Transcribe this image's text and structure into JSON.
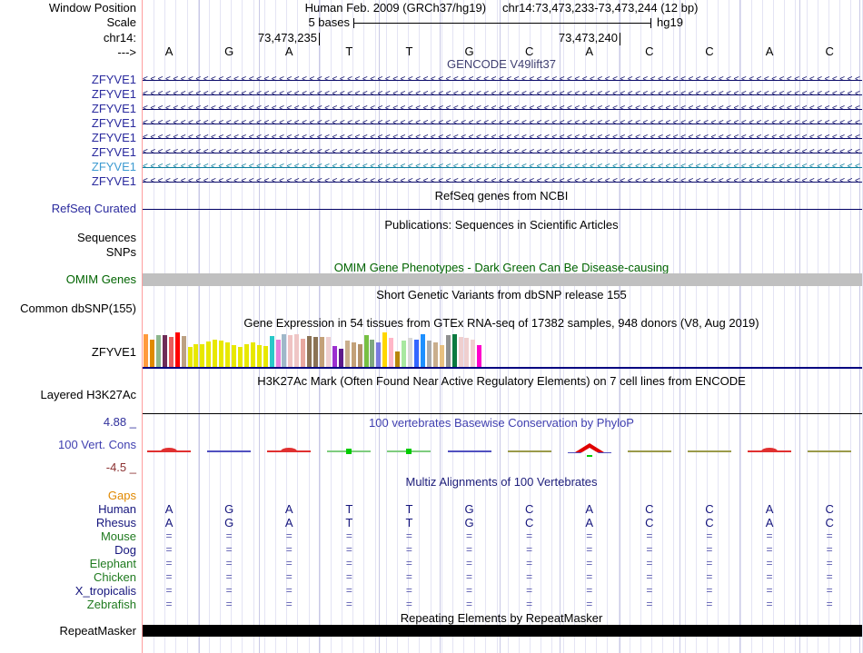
{
  "header": {
    "row_labels": {
      "window_position": "Window Position",
      "scale": "Scale",
      "chrom": "chr14:",
      "direction": "--->"
    },
    "assembly": "Human Feb. 2009 (GRCh37/hg19)",
    "position": "chr14:73,473,233-73,473,244 (12 bp)",
    "scale_label": "5 bases",
    "scale_right_label": "hg19",
    "coord_ticks": [
      "73,473,235",
      "73,473,240"
    ]
  },
  "bases": [
    "A",
    "G",
    "A",
    "T",
    "T",
    "G",
    "C",
    "A",
    "C",
    "C",
    "A",
    "C"
  ],
  "tracks": {
    "gencode": {
      "title": "GENCODE V49lift37",
      "title_color": "#3f3f70",
      "genes": [
        {
          "label": "ZFYVE1",
          "label_color": "#2a2a9e",
          "arrow_color": "#0d0d6b"
        },
        {
          "label": "ZFYVE1",
          "label_color": "#2a2a9e",
          "arrow_color": "#0d0d6b"
        },
        {
          "label": "ZFYVE1",
          "label_color": "#2a2a9e",
          "arrow_color": "#0d0d6b"
        },
        {
          "label": "ZFYVE1",
          "label_color": "#2a2a9e",
          "arrow_color": "#0d0d6b"
        },
        {
          "label": "ZFYVE1",
          "label_color": "#2a2a9e",
          "arrow_color": "#0d0d6b"
        },
        {
          "label": "ZFYVE1",
          "label_color": "#2a2a9e",
          "arrow_color": "#0d0d6b"
        },
        {
          "label": "ZFYVE1",
          "label_color": "#3d9bd1",
          "arrow_color": "#0e7f9e"
        },
        {
          "label": "ZFYVE1",
          "label_color": "#2a2a9e",
          "arrow_color": "#0d0d6b"
        }
      ]
    },
    "refseq": {
      "title": "RefSeq genes from NCBI",
      "label": "RefSeq Curated",
      "label_color": "#2a2a9e",
      "line_color": "#000064"
    },
    "publications": {
      "title": "Publications: Sequences in Scientific Articles",
      "labels": [
        "Sequences",
        "SNPs"
      ]
    },
    "omim": {
      "title": "OMIM Gene Phenotypes - Dark Green Can Be Disease-causing",
      "label": "OMIM Genes",
      "color": "#006400",
      "bar_color": "#c0c0c0"
    },
    "dbsnp": {
      "title": "Short Genetic Variants from dbSNP release 155",
      "label": "Common dbSNP(155)"
    },
    "gtex": {
      "title": "Gene Expression in 54 tissues from GTEx RNA-seq of 17382 samples, 948 donors (V8, Aug 2019)",
      "label": "ZFYVE1",
      "baseline_color": "#000080",
      "bars": [
        [
          "#FF9A3D",
          0.95
        ],
        [
          "#E08A00",
          0.78
        ],
        [
          "#8DB78D",
          0.92
        ],
        [
          "#6E2B57",
          0.92
        ],
        [
          "#E75C5C",
          0.86
        ],
        [
          "#FF0000",
          1.0
        ],
        [
          "#BCA183",
          0.9
        ],
        [
          "#E8E800",
          0.58
        ],
        [
          "#E8E800",
          0.66
        ],
        [
          "#E8E800",
          0.66
        ],
        [
          "#E8E800",
          0.73
        ],
        [
          "#E8E800",
          0.78
        ],
        [
          "#E8E800",
          0.76
        ],
        [
          "#E8E800",
          0.7
        ],
        [
          "#E8E800",
          0.62
        ],
        [
          "#E8E800",
          0.58
        ],
        [
          "#E8E800",
          0.66
        ],
        [
          "#E8E800",
          0.71
        ],
        [
          "#E8E800",
          0.64
        ],
        [
          "#E8E800",
          0.6
        ],
        [
          "#29C9C9",
          0.9
        ],
        [
          "#E57FDC",
          0.8
        ],
        [
          "#9FB8C9",
          0.95
        ],
        [
          "#EFC3C3",
          0.92
        ],
        [
          "#EFC6C6",
          0.95
        ],
        [
          "#E8A9A0",
          0.82
        ],
        [
          "#8B7355",
          0.9
        ],
        [
          "#8B7355",
          0.86
        ],
        [
          "#C3A179",
          0.86
        ],
        [
          "#EFD0D0",
          0.88
        ],
        [
          "#9B30D0",
          0.6
        ],
        [
          "#5D1A8B",
          0.52
        ],
        [
          "#C9AE8C",
          0.76
        ],
        [
          "#C3A179",
          0.7
        ],
        [
          "#B39169",
          0.66
        ],
        [
          "#77C043",
          0.92
        ],
        [
          "#7FA77F",
          0.8
        ],
        [
          "#7A7AE0",
          0.72
        ],
        [
          "#FFD700",
          1.0
        ],
        [
          "#FFB6C8",
          0.84
        ],
        [
          "#B8860B",
          0.44
        ],
        [
          "#A8E8A0",
          0.76
        ],
        [
          "#D8D8D8",
          0.84
        ],
        [
          "#3366FF",
          0.8
        ],
        [
          "#1E90FF",
          0.95
        ],
        [
          "#ABABAB",
          0.76
        ],
        [
          "#C9AE8C",
          0.72
        ],
        [
          "#E8C080",
          0.62
        ],
        [
          "#909090",
          0.92
        ],
        [
          "#0B7A40",
          0.95
        ],
        [
          "#EFCFCF",
          0.86
        ],
        [
          "#EFCFCF",
          0.84
        ],
        [
          "#F0D0D0",
          0.8
        ],
        [
          "#FF00CC",
          0.62
        ]
      ]
    },
    "h3k27ac": {
      "title": "H3K27Ac Mark (Often Found Near Active Regulatory Elements) on 7 cell lines from ENCODE",
      "label": "Layered H3K27Ac"
    },
    "phylop": {
      "title": "100 vertebrates Basewise Conservation by PhyloP",
      "title_color": "#4040b0",
      "label": "100 Vert. Cons",
      "max": "4.88 _",
      "max_color": "#30309c",
      "min": "-4.5 _",
      "min_color": "#8b3030",
      "segments": [
        {
          "type": "hump",
          "color": "#e03030"
        },
        {
          "type": "flat",
          "color": "#5050c0"
        },
        {
          "type": "hump",
          "color": "#e03030"
        },
        {
          "type": "block",
          "color": "#7fcc7f",
          "block_color": "#00cc00"
        },
        {
          "type": "block",
          "color": "#7fcc7f",
          "block_color": "#00cc00"
        },
        {
          "type": "flat",
          "color": "#5050c0"
        },
        {
          "type": "flat",
          "color": "#9a9a4a"
        },
        {
          "type": "peak",
          "color": "#e00000",
          "base_color": "#5050c0",
          "block_color": "#00cc00"
        },
        {
          "type": "flat",
          "color": "#9a9a4a"
        },
        {
          "type": "flat",
          "color": "#9a9a4a"
        },
        {
          "type": "hump",
          "color": "#e03030"
        },
        {
          "type": "flat",
          "color": "#9a9a4a"
        }
      ]
    },
    "multiz": {
      "title": "Multiz Alignments of 100 Vertebrates",
      "title_color": "#20207c",
      "rows": [
        {
          "label": "Gaps",
          "label_color": "#e08800",
          "cells": null,
          "cell_color": null
        },
        {
          "label": "Human",
          "label_color": "#15157d",
          "cell_color": "#15157d",
          "cells": [
            "A",
            "G",
            "A",
            "T",
            "T",
            "G",
            "C",
            "A",
            "C",
            "C",
            "A",
            "C"
          ]
        },
        {
          "label": "Rhesus",
          "label_color": "#15157d",
          "cell_color": "#15157d",
          "cells": [
            "A",
            "G",
            "A",
            "T",
            "T",
            "G",
            "C",
            "A",
            "C",
            "C",
            "A",
            "C"
          ]
        },
        {
          "label": "Mouse",
          "label_color": "#1f7a1f",
          "cell_color": "#5c5cb0",
          "cells": [
            "=",
            "=",
            "=",
            "=",
            "=",
            "=",
            "=",
            "=",
            "=",
            "=",
            "=",
            "="
          ]
        },
        {
          "label": "Dog",
          "label_color": "#15157d",
          "cell_color": "#5c5cb0",
          "cells": [
            "=",
            "=",
            "=",
            "=",
            "=",
            "=",
            "=",
            "=",
            "=",
            "=",
            "=",
            "="
          ]
        },
        {
          "label": "Elephant",
          "label_color": "#1f7a1f",
          "cell_color": "#5c5cb0",
          "cells": [
            "=",
            "=",
            "=",
            "=",
            "=",
            "=",
            "=",
            "=",
            "=",
            "=",
            "=",
            "="
          ]
        },
        {
          "label": "Chicken",
          "label_color": "#1f7a1f",
          "cell_color": "#5c5cb0",
          "cells": [
            "=",
            "=",
            "=",
            "=",
            "=",
            "=",
            "=",
            "=",
            "=",
            "=",
            "=",
            "="
          ]
        },
        {
          "label": "X_tropicalis",
          "label_color": "#15157d",
          "cell_color": "#5c5cb0",
          "cells": [
            "=",
            "=",
            "=",
            "=",
            "=",
            "=",
            "=",
            "=",
            "=",
            "=",
            "=",
            "="
          ]
        },
        {
          "label": "Zebrafish",
          "label_color": "#1f7a1f",
          "cell_color": "#5c5cb0",
          "cells": [
            "=",
            "=",
            "=",
            "=",
            "=",
            "=",
            "=",
            "=",
            "=",
            "=",
            "=",
            "="
          ]
        }
      ]
    },
    "repeatmasker": {
      "title": "Repeating Elements by RepeatMasker",
      "label": "RepeatMasker",
      "bar_color": "#000000"
    }
  }
}
